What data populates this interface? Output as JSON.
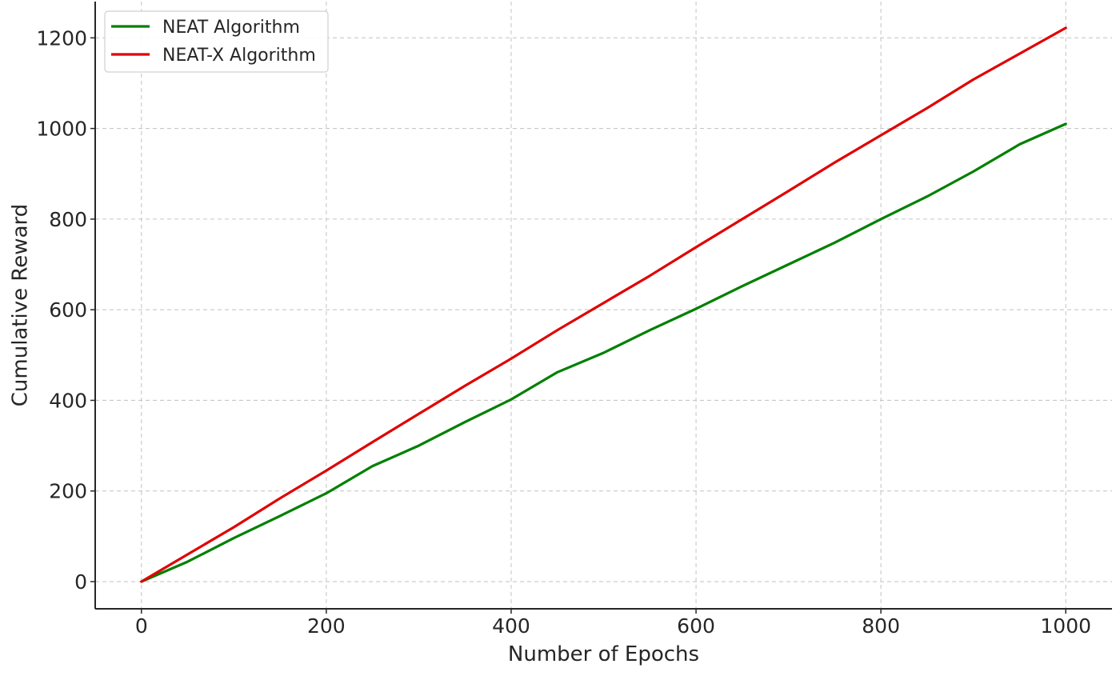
{
  "chart_data": {
    "type": "line",
    "xlabel": "Number of Epochs",
    "ylabel": "Cumulative Reward",
    "xlim": [
      -50,
      1050
    ],
    "ylim": [
      -60,
      1280
    ],
    "xticks": [
      0,
      200,
      400,
      600,
      800,
      1000
    ],
    "yticks": [
      0,
      200,
      400,
      600,
      800,
      1000,
      1200
    ],
    "grid": true,
    "legend_position": "top-left",
    "series": [
      {
        "name": "NEAT Algorithm",
        "color": "#008000",
        "x": [
          0,
          50,
          100,
          150,
          200,
          250,
          300,
          350,
          400,
          450,
          500,
          550,
          600,
          650,
          700,
          750,
          800,
          850,
          900,
          950,
          1000
        ],
        "y": [
          0,
          44,
          96,
          145,
          195,
          255,
          300,
          352,
          402,
          462,
          505,
          555,
          602,
          652,
          700,
          748,
          800,
          850,
          905,
          965,
          1010
        ]
      },
      {
        "name": "NEAT-X Algorithm",
        "color": "#e00000",
        "x": [
          0,
          50,
          100,
          150,
          200,
          250,
          300,
          350,
          400,
          450,
          500,
          550,
          600,
          650,
          700,
          750,
          800,
          850,
          900,
          950,
          1000
        ],
        "y": [
          0,
          60,
          120,
          184,
          245,
          308,
          370,
          432,
          492,
          555,
          615,
          675,
          738,
          800,
          862,
          925,
          985,
          1045,
          1108,
          1165,
          1222
        ]
      }
    ]
  }
}
